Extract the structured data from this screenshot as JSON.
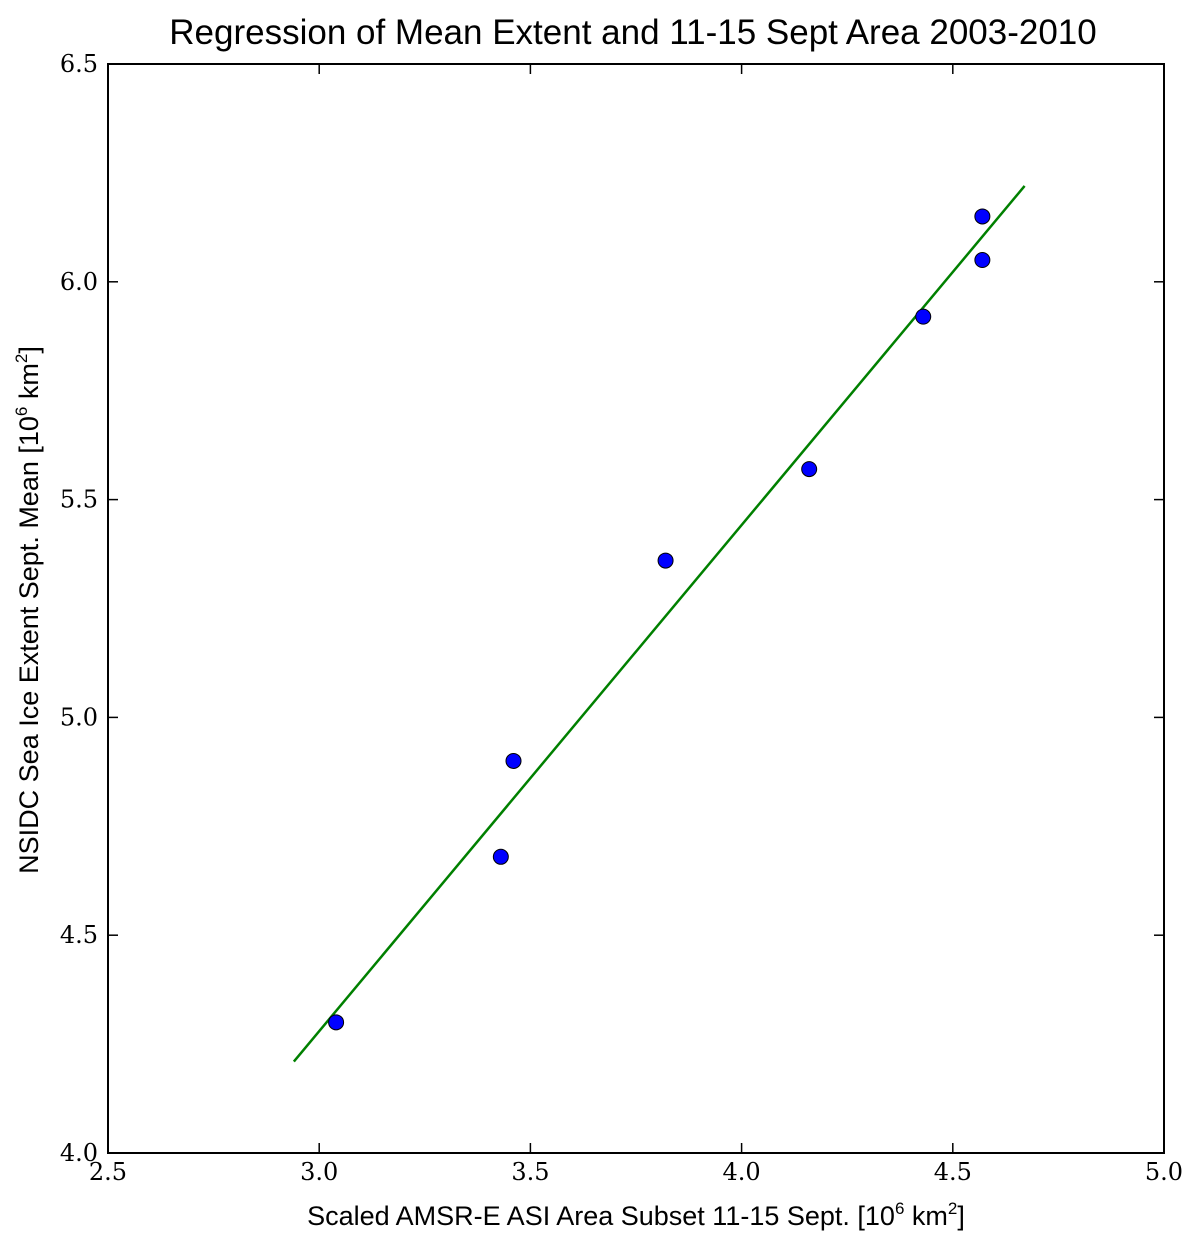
{
  "chart_data": {
    "type": "scatter",
    "title": "Regression of Mean Extent and 11-15 Sept Area 2003-2010",
    "xlabel": {
      "main": "Scaled AMSR-E ASI Area Subset 11-15 Sept. [10",
      "exp1": "6",
      "mid": " km",
      "exp2": "2",
      "end": "]"
    },
    "ylabel": {
      "main": "NSIDC Sea Ice Extent Sept. Mean [10",
      "exp1": "6",
      "mid": " km",
      "exp2": "2",
      "end": "]"
    },
    "xlim": [
      2.5,
      5.0
    ],
    "ylim": [
      4.0,
      6.5
    ],
    "xticks": [
      2.5,
      3.0,
      3.5,
      4.0,
      4.5,
      5.0
    ],
    "xtick_labels": [
      "2.5",
      "3.0",
      "3.5",
      "4.0",
      "4.5",
      "5.0"
    ],
    "yticks": [
      4.0,
      4.5,
      5.0,
      5.5,
      6.0,
      6.5
    ],
    "ytick_labels": [
      "4.0",
      "4.5",
      "5.0",
      "5.5",
      "6.0",
      "6.5"
    ],
    "grid": false,
    "points": [
      {
        "x": 3.04,
        "y": 4.3
      },
      {
        "x": 3.43,
        "y": 4.68
      },
      {
        "x": 3.46,
        "y": 4.9
      },
      {
        "x": 3.82,
        "y": 5.36
      },
      {
        "x": 4.16,
        "y": 5.57
      },
      {
        "x": 4.43,
        "y": 5.92
      },
      {
        "x": 4.57,
        "y": 6.05
      },
      {
        "x": 4.57,
        "y": 6.15
      }
    ],
    "regression_line": {
      "x": [
        2.94,
        4.67
      ],
      "y": [
        4.21,
        6.22
      ]
    },
    "colors": {
      "points": "#0000ff",
      "point_edge": "#000000",
      "line": "#008000",
      "axes": "#000000"
    }
  }
}
